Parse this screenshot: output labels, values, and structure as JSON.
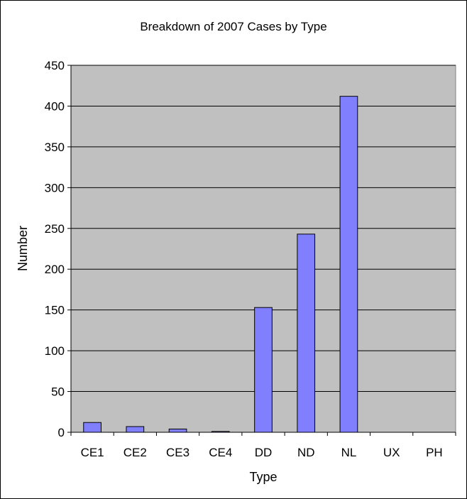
{
  "chart_data": {
    "type": "bar",
    "title": "Breakdown of 2007 Cases by Type",
    "xlabel": "Type",
    "ylabel": "Number",
    "categories": [
      "CE1",
      "CE2",
      "CE3",
      "CE4",
      "DD",
      "ND",
      "NL",
      "UX",
      "PH"
    ],
    "values": [
      12,
      7,
      4,
      1,
      153,
      243,
      412,
      0,
      0
    ],
    "ylim": [
      0,
      450
    ],
    "yticks": [
      0,
      50,
      100,
      150,
      200,
      250,
      300,
      350,
      400,
      450
    ],
    "grid": true,
    "legend": "none",
    "colors": {
      "bar_fill": "#8080ff",
      "bar_stroke": "#000000",
      "plot_background": "#c0c0c0",
      "gridline": "#000000"
    }
  }
}
